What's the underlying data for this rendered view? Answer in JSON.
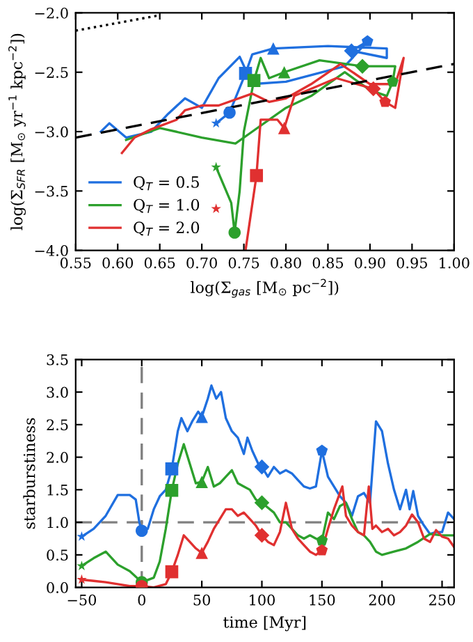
{
  "chart_data": [
    {
      "type": "line",
      "xlabel": "log(Σ$_{gas}$ [M$_{⊙}$ pc$^{−2}$])",
      "ylabel": "log(Σ$_{SFR}$ [M$_{⊙}$ yr$^{−1}$ kpc$^{−2}$])",
      "xlim": [
        0.55,
        1.0
      ],
      "ylim": [
        -4.0,
        -2.0
      ],
      "xticks": [
        0.55,
        {
          "value": 0.6,
          "label": "0.60"
        },
        0.65,
        {
          "value": 0.7,
          "label": "0.70"
        },
        0.75,
        {
          "value": 0.8,
          "label": "0.80"
        },
        0.85,
        {
          "value": 0.9,
          "label": "0.90"
        },
        0.95,
        {
          "value": 1.0,
          "label": "1.00"
        }
      ],
      "yticks": [
        {
          "value": -4.0,
          "label": "−4.0"
        },
        {
          "value": -3.5,
          "label": "−3.5"
        },
        {
          "value": -3.0,
          "label": "−3.0"
        },
        {
          "value": -2.5,
          "label": "−2.5"
        },
        {
          "value": -2.0,
          "label": "−2.0"
        }
      ],
      "legend": "bottom left",
      "grid": false,
      "series": [
        {
          "name": "Q$_{T}$ = 0.5",
          "color": "#1f6fdf",
          "x": [
            0.717,
            0.733,
            0.752,
            0.76,
            0.785,
            0.85,
            0.92,
            0.92,
            0.878,
            0.897,
            0.87,
            0.8,
            0.76,
            0.745,
            0.72,
            0.7,
            0.68,
            0.66,
            0.64,
            0.61,
            0.59,
            0.58
          ],
          "values": [
            -2.93,
            -2.84,
            -2.51,
            -2.35,
            -2.3,
            -2.28,
            -2.3,
            -2.38,
            -2.32,
            -2.24,
            -2.45,
            -2.58,
            -2.6,
            -2.37,
            -2.55,
            -2.8,
            -2.72,
            -2.85,
            -3.0,
            -3.05,
            -2.93,
            -3.0
          ]
        },
        {
          "name": "Q$_{T}$ = 1.0",
          "color": "#2ca02c",
          "x": [
            0.717,
            0.735,
            0.739,
            0.745,
            0.75,
            0.762,
            0.77,
            0.78,
            0.798,
            0.84,
            0.891,
            0.93,
            0.927,
            0.92,
            0.9,
            0.87,
            0.83,
            0.8,
            0.76,
            0.74,
            0.7,
            0.65,
            0.61
          ],
          "values": [
            -3.3,
            -3.6,
            -3.85,
            -3.5,
            -3.0,
            -2.57,
            -2.38,
            -2.55,
            -2.5,
            -2.4,
            -2.45,
            -2.45,
            -2.58,
            -2.7,
            -2.65,
            -2.5,
            -2.7,
            -2.8,
            -3.0,
            -3.1,
            -3.05,
            -2.97,
            -3.07
          ]
        },
        {
          "name": "Q$_{T}$ = 2.0",
          "color": "#e03030",
          "x": [
            0.752,
            0.765,
            0.77,
            0.79,
            0.798,
            0.81,
            0.86,
            0.904,
            0.918,
            0.93,
            0.94,
            0.93,
            0.9,
            0.865,
            0.83,
            0.8,
            0.78,
            0.76,
            0.72,
            0.7,
            0.68,
            0.67,
            0.64,
            0.62,
            0.605
          ],
          "values": [
            -4.0,
            -3.37,
            -2.9,
            -2.9,
            -2.97,
            -2.7,
            -2.55,
            -2.64,
            -2.75,
            -2.8,
            -2.38,
            -2.6,
            -2.6,
            -2.43,
            -2.6,
            -2.72,
            -2.75,
            -2.68,
            -2.78,
            -2.78,
            -2.82,
            -2.9,
            -2.98,
            -3.05,
            -3.18
          ]
        },
        {
          "color": "#000000",
          "line_style": "dashed",
          "x": [
            0.55,
            1.0
          ],
          "values": [
            -3.05,
            -2.43
          ]
        },
        {
          "color": "#000000",
          "line_style": "dotted",
          "x": [
            0.55,
            0.65
          ],
          "values": [
            -2.15,
            -2.02
          ]
        },
        {
          "type": "scatter",
          "marker": "star",
          "x": [
            0.717,
            0.717,
            0.717
          ],
          "values": [
            -2.93,
            -3.3,
            -3.65
          ],
          "colors": [
            "#1f6fdf",
            "#2ca02c",
            "#e03030"
          ]
        },
        {
          "type": "scatter",
          "marker": "circle",
          "x": [
            0.733,
            0.739,
            null
          ],
          "values": [
            -2.84,
            -3.85,
            null
          ],
          "colors": [
            "#1f6fdf",
            "#2ca02c",
            "#e03030"
          ]
        },
        {
          "type": "scatter",
          "marker": "square",
          "x": [
            0.752,
            0.762,
            0.765
          ],
          "values": [
            -2.51,
            -2.57,
            -3.37
          ],
          "colors": [
            "#1f6fdf",
            "#2ca02c",
            "#e03030"
          ]
        },
        {
          "type": "scatter",
          "marker": "triangle",
          "x": [
            0.785,
            0.798,
            0.798
          ],
          "values": [
            -2.3,
            -2.5,
            -2.97
          ],
          "colors": [
            "#1f6fdf",
            "#2ca02c",
            "#e03030"
          ]
        },
        {
          "type": "scatter",
          "marker": "diamond",
          "x": [
            0.878,
            0.891,
            0.904
          ],
          "values": [
            -2.32,
            -2.45,
            -2.64
          ],
          "colors": [
            "#1f6fdf",
            "#2ca02c",
            "#e03030"
          ]
        },
        {
          "type": "scatter",
          "x": [
            0.897,
            0.927,
            0.918
          ],
          "values": [
            -2.24,
            -2.58,
            -2.75
          ],
          "colors": [
            "#1f6fdf",
            "#2ca02c",
            "#e03030"
          ]
        }
      ]
    },
    {
      "type": "line",
      "xlabel": "time [Myr]",
      "ylabel": "starburstiness",
      "xlim": [
        -55,
        260
      ],
      "ylim": [
        0.0,
        3.5
      ],
      "xticks": [
        {
          "value": -50,
          "label": "−50"
        },
        0,
        50,
        100,
        150,
        200,
        250
      ],
      "yticks": [
        {
          "value": 0,
          "label": "0.0"
        },
        {
          "value": 0.5,
          "label": "0.5"
        },
        {
          "value": 1,
          "label": "1.0"
        },
        {
          "value": 1.5,
          "label": "1.5"
        },
        {
          "value": 2,
          "label": "2.0"
        },
        {
          "value": 2.5,
          "label": "2.5"
        },
        {
          "value": 3,
          "label": "3.0"
        },
        {
          "value": 3.5,
          "label": "3.5"
        }
      ],
      "grid": false,
      "ref_lines": [
        {
          "axis": "y",
          "value": 1.0,
          "color": "#808080",
          "line_style": "dashed"
        },
        {
          "axis": "x",
          "value": 0,
          "color": "#808080",
          "line_style": "dashed"
        }
      ],
      "series": [
        {
          "color": "#1f6fdf",
          "x": [
            -50,
            -40,
            -30,
            -20,
            -10,
            -5,
            -2,
            0,
            5,
            10,
            15,
            20,
            25,
            30,
            33,
            38,
            42,
            47,
            50,
            55,
            58,
            62,
            66,
            70,
            75,
            80,
            85,
            88,
            92,
            97,
            100,
            105,
            110,
            115,
            120,
            125,
            130,
            135,
            140,
            145,
            150,
            155,
            160,
            165,
            170,
            175,
            180,
            185,
            190,
            195,
            200,
            205,
            210,
            215,
            220,
            223,
            226,
            230,
            235,
            240,
            245,
            250,
            255,
            260
          ],
          "values": [
            0.78,
            0.9,
            1.1,
            1.42,
            1.42,
            1.35,
            1.0,
            0.87,
            0.9,
            1.2,
            1.4,
            1.5,
            1.82,
            2.4,
            2.6,
            2.4,
            2.55,
            2.7,
            2.62,
            2.9,
            3.1,
            2.9,
            3.0,
            2.6,
            2.4,
            2.3,
            2.05,
            2.3,
            2.1,
            1.9,
            1.85,
            1.7,
            1.85,
            1.75,
            1.8,
            1.75,
            1.65,
            1.55,
            1.52,
            1.55,
            2.1,
            1.7,
            1.55,
            1.4,
            1.3,
            1.1,
            1.4,
            1.45,
            1.3,
            2.55,
            2.4,
            1.9,
            1.5,
            1.2,
            1.5,
            1.2,
            1.48,
            1.1,
            0.95,
            0.82,
            0.85,
            0.85,
            1.15,
            1.05
          ]
        },
        {
          "color": "#2ca02c",
          "x": [
            -50,
            -40,
            -30,
            -20,
            -10,
            0,
            10,
            15,
            20,
            25,
            30,
            35,
            40,
            45,
            50,
            55,
            60,
            65,
            70,
            75,
            80,
            85,
            90,
            95,
            100,
            110,
            115,
            120,
            125,
            130,
            135,
            140,
            145,
            150,
            155,
            160,
            165,
            170,
            175,
            180,
            185,
            190,
            195,
            200,
            210,
            220,
            230,
            240,
            250,
            260
          ],
          "values": [
            0.33,
            0.45,
            0.55,
            0.35,
            0.25,
            0.08,
            0.15,
            0.4,
            0.9,
            1.49,
            1.9,
            2.2,
            1.9,
            1.6,
            1.62,
            1.85,
            1.55,
            1.6,
            1.7,
            1.8,
            1.6,
            1.55,
            1.5,
            1.35,
            1.3,
            1.15,
            1.0,
            1.0,
            0.9,
            0.8,
            0.75,
            0.8,
            0.75,
            0.72,
            1.15,
            1.05,
            1.25,
            1.3,
            1.05,
            0.85,
            0.8,
            0.7,
            0.55,
            0.5,
            0.55,
            0.6,
            0.7,
            0.82,
            0.8,
            0.8
          ]
        },
        {
          "color": "#e03030",
          "x": [
            -50,
            -40,
            -30,
            -20,
            -10,
            0,
            10,
            20,
            25,
            30,
            35,
            40,
            45,
            50,
            55,
            60,
            65,
            70,
            75,
            80,
            85,
            90,
            95,
            100,
            105,
            110,
            115,
            120,
            125,
            130,
            135,
            140,
            145,
            150,
            155,
            160,
            167,
            170,
            175,
            180,
            185,
            189,
            192,
            195,
            200,
            205,
            210,
            215,
            220,
            225,
            230,
            235,
            240,
            245,
            250,
            255,
            260
          ],
          "values": [
            0.12,
            0.1,
            0.08,
            0.05,
            0.02,
            0.02,
            0.0,
            0.05,
            0.24,
            0.5,
            0.8,
            0.7,
            0.6,
            0.53,
            0.7,
            0.9,
            1.05,
            1.2,
            1.2,
            1.1,
            1.15,
            1.05,
            0.95,
            0.8,
            0.7,
            0.65,
            0.85,
            1.3,
            0.9,
            0.75,
            0.65,
            0.55,
            0.5,
            0.57,
            0.9,
            1.2,
            1.55,
            1.1,
            0.95,
            0.85,
            0.8,
            1.55,
            0.9,
            0.95,
            0.85,
            0.9,
            0.8,
            0.85,
            0.95,
            1.12,
            1.0,
            0.75,
            0.7,
            0.88,
            0.78,
            0.75,
            0.62
          ]
        },
        {
          "type": "scatter",
          "marker": "star",
          "x": [
            -50,
            -50,
            -50
          ],
          "values": [
            0.78,
            0.33,
            0.12
          ],
          "colors": [
            "#1f6fdf",
            "#2ca02c",
            "#e03030"
          ]
        },
        {
          "type": "scatter",
          "marker": "circle",
          "x": [
            0,
            0,
            0
          ],
          "values": [
            0.87,
            0.08,
            0.02
          ],
          "colors": [
            "#1f6fdf",
            "#2ca02c",
            "#e03030"
          ]
        },
        {
          "type": "scatter",
          "marker": "square",
          "x": [
            25,
            25,
            25
          ],
          "values": [
            1.82,
            1.49,
            0.24
          ],
          "colors": [
            "#1f6fdf",
            "#2ca02c",
            "#e03030"
          ]
        },
        {
          "type": "scatter",
          "marker": "triangle",
          "x": [
            50,
            50,
            50
          ],
          "values": [
            2.62,
            1.62,
            0.53
          ],
          "colors": [
            "#1f6fdf",
            "#2ca02c",
            "#e03030"
          ]
        },
        {
          "type": "scatter",
          "marker": "diamond",
          "x": [
            100,
            100,
            100
          ],
          "values": [
            1.85,
            1.3,
            0.8
          ],
          "colors": [
            "#1f6fdf",
            "#2ca02c",
            "#e03030"
          ]
        },
        {
          "type": "scatter",
          "x": [
            150,
            150,
            150
          ],
          "values": [
            2.1,
            0.72,
            0.57
          ],
          "colors": [
            "#1f6fdf",
            "#2ca02c",
            "#e03030"
          ]
        }
      ]
    }
  ]
}
